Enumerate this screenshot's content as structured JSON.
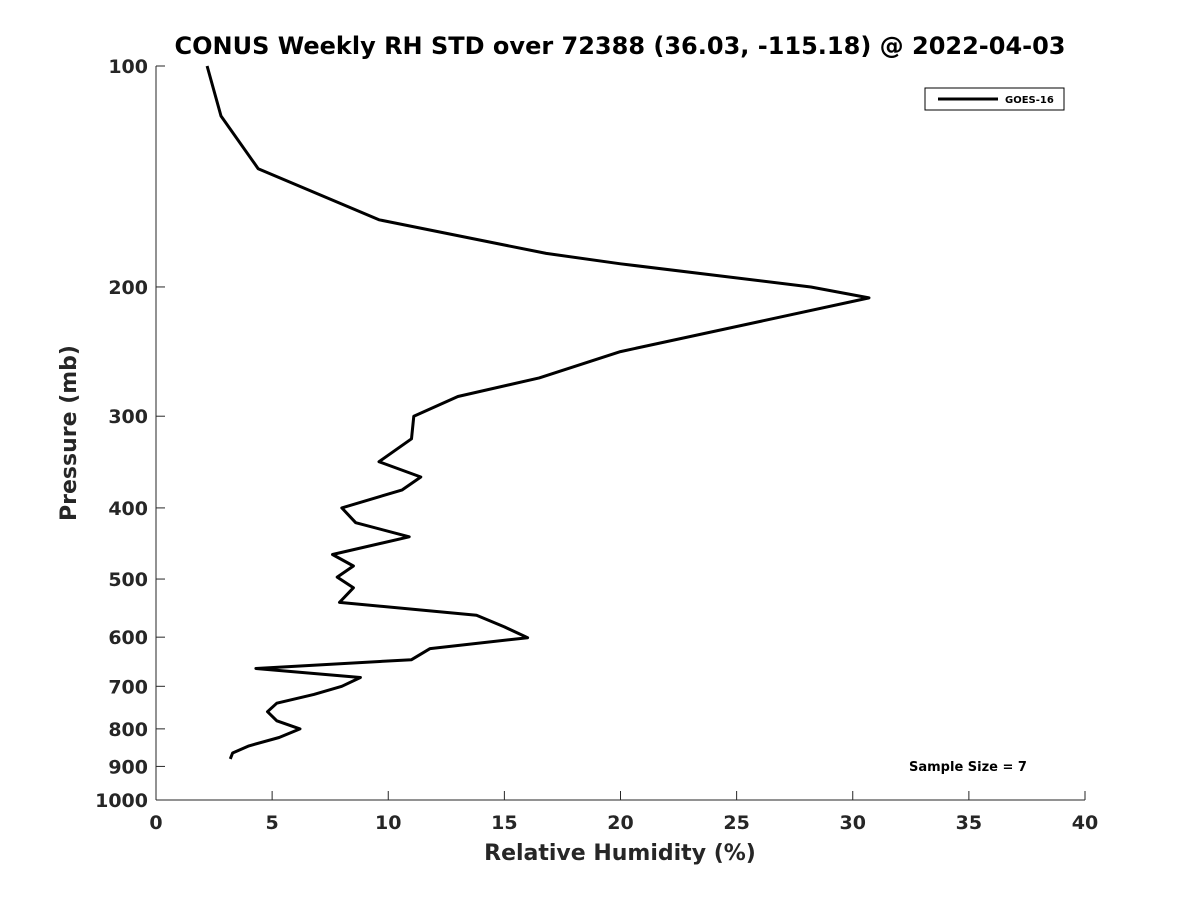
{
  "chart_data": {
    "type": "line",
    "title": "CONUS Weekly RH STD over 72388 (36.03, -115.18) @ 2022-04-03",
    "xlabel": "Relative Humidity (%)",
    "ylabel": "Pressure (mb)",
    "xlim": [
      0,
      40
    ],
    "ylim": [
      100,
      1000
    ],
    "y_scale": "log",
    "y_reversed": true,
    "x_ticks": [
      "0",
      "5",
      "10",
      "15",
      "20",
      "25",
      "30",
      "35",
      "40"
    ],
    "x_tick_values": [
      0,
      5,
      10,
      15,
      20,
      25,
      30,
      35,
      40
    ],
    "y_ticks": [
      "100",
      "200",
      "300",
      "400",
      "500",
      "600",
      "700",
      "800",
      "900",
      "1000"
    ],
    "y_tick_values": [
      100,
      200,
      300,
      400,
      500,
      600,
      700,
      800,
      900,
      1000
    ],
    "grid": false,
    "legend_position": "top-right",
    "series": [
      {
        "name": "GOES-16",
        "color": "#000000",
        "x": [
          2.2,
          2.8,
          4.4,
          9.6,
          16.8,
          20.0,
          28.2,
          30.7,
          20.0,
          16.5,
          13.0,
          11.1,
          11.0,
          9.6,
          11.4,
          10.6,
          8.0,
          8.6,
          10.9,
          7.6,
          8.5,
          7.8,
          8.5,
          7.9,
          13.8,
          15.0,
          16.0,
          11.8,
          11.0,
          4.3,
          8.8,
          8.0,
          6.8,
          5.2,
          4.8,
          5.2,
          6.2,
          5.3,
          4.0,
          3.3,
          3.2
        ],
        "y": [
          100,
          117,
          138,
          162,
          180,
          186,
          200,
          207,
          245,
          266,
          282,
          300,
          322,
          346,
          363,
          378,
          400,
          419,
          438,
          463,
          480,
          497,
          514,
          538,
          560,
          581,
          601,
          622,
          644,
          662,
          681,
          700,
          718,
          738,
          758,
          780,
          800,
          822,
          844,
          863,
          879
        ]
      }
    ],
    "annotations": [
      "Sample Size = 7"
    ]
  }
}
